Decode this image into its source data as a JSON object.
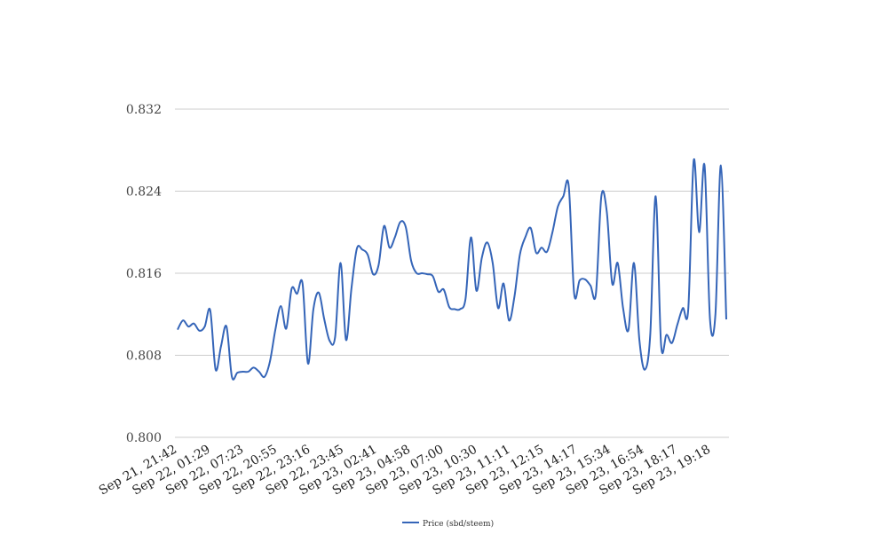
{
  "chart_data": {
    "type": "line",
    "title": "",
    "xlabel": "",
    "ylabel": "",
    "ylim": [
      0.8,
      0.832
    ],
    "y_ticks": [
      "0.800",
      "0.808",
      "0.816",
      "0.824",
      "0.832"
    ],
    "grid": "horizontal",
    "legend_position": "bottom",
    "line_color": "#3565b8",
    "x_tick_labels": [
      "Sep 21, 21:42",
      "Sep 22, 01:29",
      "Sep 22, 07:23",
      "Sep 22, 20:55",
      "Sep 22, 23:16",
      "Sep 22, 23:45",
      "Sep 23, 02:41",
      "Sep 23, 04:58",
      "Sep 23, 07:00",
      "Sep 23, 10:30",
      "Sep 23, 11:11",
      "Sep 23, 12:15",
      "Sep 23, 14:17",
      "Sep 23, 15:34",
      "Sep 23, 16:54",
      "Sep 23, 18:17",
      "Sep 23, 19:18"
    ],
    "series": [
      {
        "name": "Price (sbd/steem)",
        "values": [
          0.8105,
          0.8114,
          0.8108,
          0.8111,
          0.8104,
          0.8108,
          0.8124,
          0.8066,
          0.8089,
          0.8108,
          0.8059,
          0.8063,
          0.8064,
          0.8064,
          0.8068,
          0.8064,
          0.8059,
          0.8074,
          0.8105,
          0.8128,
          0.8106,
          0.8145,
          0.814,
          0.815,
          0.8072,
          0.8125,
          0.8141,
          0.8115,
          0.8094,
          0.8098,
          0.817,
          0.8095,
          0.8145,
          0.8184,
          0.8183,
          0.8178,
          0.8159,
          0.8168,
          0.8206,
          0.8185,
          0.8195,
          0.821,
          0.8205,
          0.8172,
          0.816,
          0.816,
          0.8159,
          0.8157,
          0.8142,
          0.8144,
          0.8127,
          0.8125,
          0.8125,
          0.8135,
          0.8195,
          0.8143,
          0.8175,
          0.819,
          0.817,
          0.8126,
          0.815,
          0.8114,
          0.8137,
          0.8178,
          0.8195,
          0.8204,
          0.818,
          0.8185,
          0.8181,
          0.82,
          0.8225,
          0.8235,
          0.8245,
          0.814,
          0.8153,
          0.8154,
          0.8148,
          0.814,
          0.8235,
          0.822,
          0.815,
          0.817,
          0.8126,
          0.8105,
          0.817,
          0.8095,
          0.8066,
          0.81,
          0.8235,
          0.809,
          0.81,
          0.8092,
          0.811,
          0.8126,
          0.8125,
          0.827,
          0.82,
          0.8265,
          0.8115,
          0.812,
          0.8265,
          0.8115
        ]
      }
    ]
  }
}
